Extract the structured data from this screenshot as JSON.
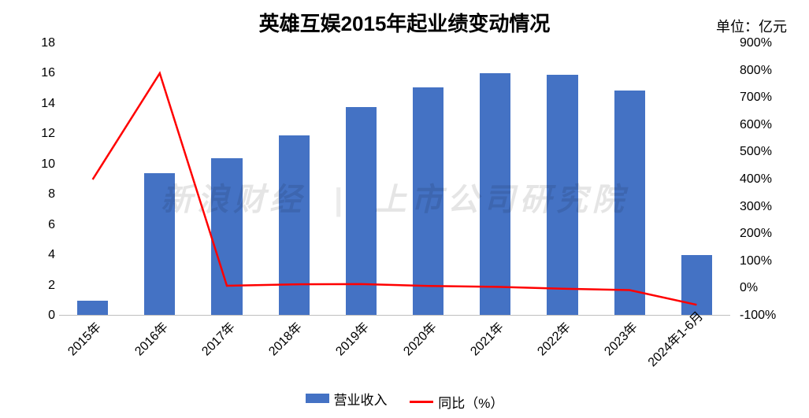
{
  "chart": {
    "title": "英雄互娱2015年起业绩变动情况",
    "title_fontsize": 26,
    "unit_label": "单位：亿元",
    "unit_fontsize": 18,
    "categories": [
      "2015年",
      "2016年",
      "2017年",
      "2018年",
      "2019年",
      "2020年",
      "2021年",
      "2022年",
      "2023年",
      "2024年1-6月"
    ],
    "bars": {
      "label": "营业收入",
      "values": [
        1.0,
        9.4,
        10.4,
        11.9,
        13.8,
        15.1,
        16.0,
        15.9,
        14.9,
        4.0
      ],
      "color": "#4472c4",
      "bar_width_ratio": 0.46
    },
    "line": {
      "label": "同比（%）",
      "values": [
        400,
        790,
        10,
        15,
        16,
        9,
        6,
        -1,
        -6,
        -60
      ],
      "color": "#ff0000",
      "width": 2.5
    },
    "y_left": {
      "min": 0,
      "max": 18,
      "step": 2,
      "ticks": [
        "0",
        "2",
        "4",
        "6",
        "8",
        "10",
        "12",
        "14",
        "16",
        "18"
      ],
      "fontsize": 16
    },
    "y_right": {
      "min": -100,
      "max": 900,
      "step": 100,
      "ticks": [
        "-100%",
        "0%",
        "100%",
        "200%",
        "300%",
        "400%",
        "500%",
        "600%",
        "700%",
        "800%",
        "900%"
      ],
      "fontsize": 16
    },
    "x_fontsize": 16,
    "x_rotation_deg": -45,
    "legend": {
      "fontsize": 17
    },
    "grid_color": "#d9d9d9",
    "baseline_color": "#bfbfbf",
    "background_color": "#ffffff",
    "watermark_left": "新浪财经",
    "watermark_right": "上市公司研究院"
  }
}
